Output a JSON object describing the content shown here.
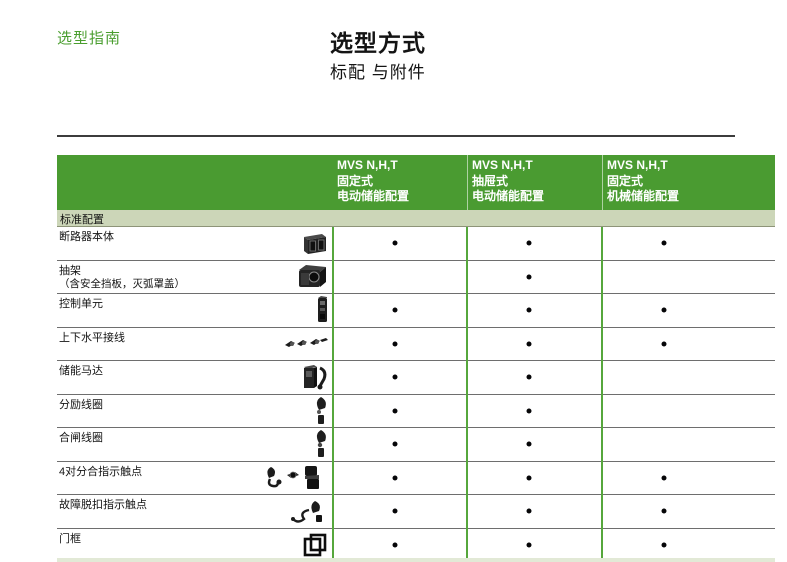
{
  "page": {
    "eyebrow": "选型指南",
    "title": "选型方式",
    "subtitle": "标配 与附件"
  },
  "colors": {
    "brand_green": "#4a9e2f",
    "header_green": "#4a9b31",
    "section_band_green": "#ccd6b8",
    "grid_line_green": "#56a73c",
    "bottom_strip_green": "#e2e9d6",
    "dot_black": "#060608"
  },
  "table": {
    "section_label": "标准配置",
    "dot_symbol": "•",
    "columns": [
      {
        "lines": [
          "MVS N,H,T",
          "固定式",
          "电动储能配置"
        ]
      },
      {
        "lines": [
          "MVS N,H,T",
          "抽屉式",
          "电动储能配置"
        ]
      },
      {
        "lines": [
          "MVS N,H,T",
          "固定式",
          "机械储能配置"
        ]
      }
    ],
    "rows": [
      {
        "label": "断路器本体",
        "label2": "",
        "icon": "circuit-breaker-icon",
        "availability": [
          true,
          true,
          true
        ]
      },
      {
        "label": "抽架",
        "label2": "（含安全挡板，灭弧罩盖）",
        "icon": "drawout-cradle-icon",
        "availability": [
          false,
          true,
          false
        ]
      },
      {
        "label": "控制单元",
        "label2": "",
        "icon": "control-unit-icon",
        "availability": [
          true,
          true,
          true
        ]
      },
      {
        "label": "上下水平接线",
        "label2": "",
        "icon": "horizontal-connection-icon",
        "availability": [
          true,
          true,
          true
        ]
      },
      {
        "label": "储能马达",
        "label2": "",
        "icon": "charging-motor-icon",
        "availability": [
          true,
          true,
          false
        ]
      },
      {
        "label": "分励线圈",
        "label2": "",
        "icon": "shunt-coil-icon",
        "availability": [
          true,
          true,
          false
        ]
      },
      {
        "label": "合闸线圈",
        "label2": "",
        "icon": "closing-coil-icon",
        "availability": [
          true,
          true,
          false
        ]
      },
      {
        "label": "4对分合指示触点",
        "label2": "",
        "icon": "aux-contacts-icon",
        "availability": [
          true,
          true,
          true
        ]
      },
      {
        "label": "故障脱扣指示触点",
        "label2": "",
        "icon": "trip-contact-icon",
        "availability": [
          true,
          true,
          true
        ]
      },
      {
        "label": "门框",
        "label2": "",
        "icon": "door-frame-icon",
        "availability": [
          true,
          true,
          true
        ]
      }
    ]
  }
}
